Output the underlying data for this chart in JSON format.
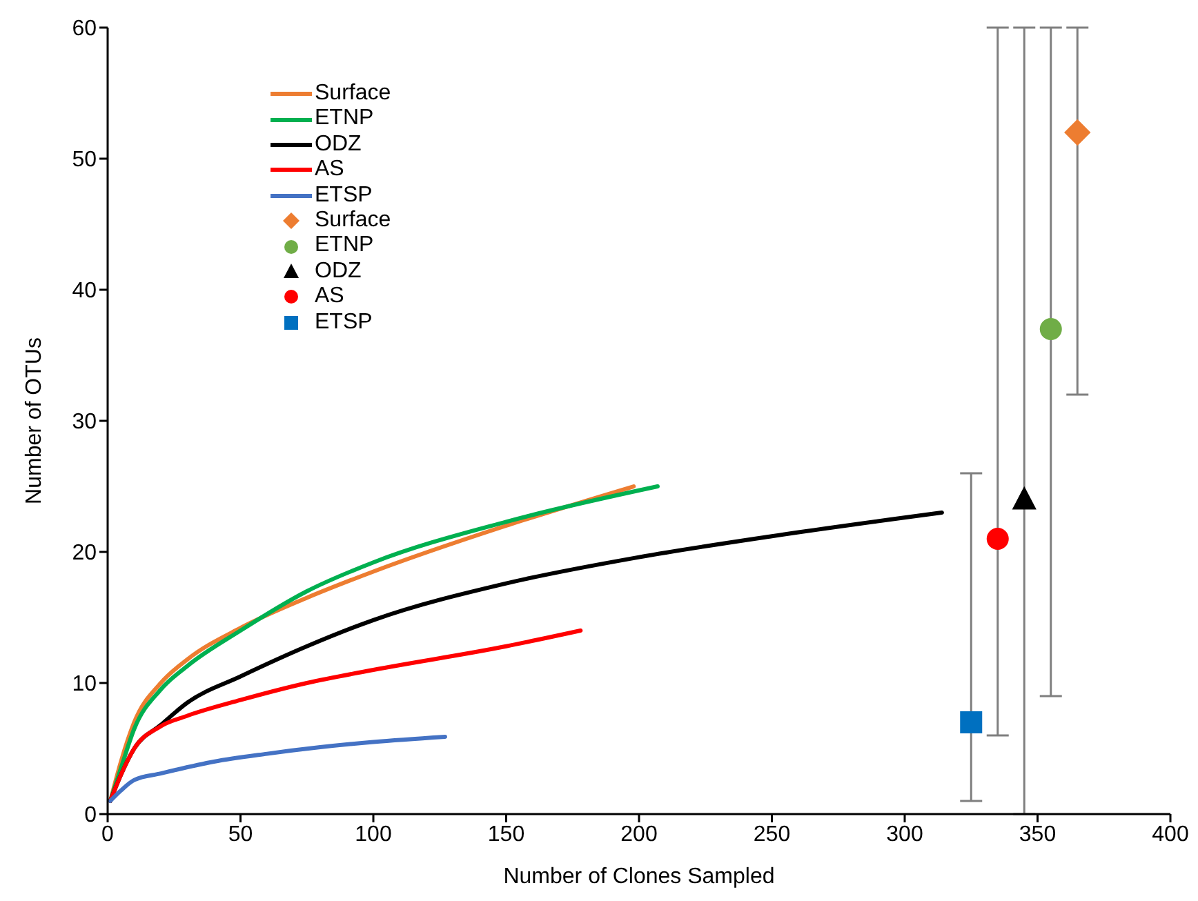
{
  "chart_data": {
    "type": "line",
    "xlabel": "Number of Clones Sampled",
    "ylabel": "Number of OTUs",
    "xlim": [
      0,
      400
    ],
    "xticks": [
      0,
      50,
      100,
      150,
      200,
      250,
      300,
      350,
      400
    ],
    "ylim": [
      0,
      60
    ],
    "yticks": [
      0,
      10,
      20,
      30,
      40,
      50,
      60
    ],
    "grid": false,
    "legend": "top left",
    "series": [
      {
        "name": "Surface",
        "color": "#ed7d31",
        "x": [
          1,
          5,
          10,
          20,
          30,
          50,
          75,
          100,
          150,
          198
        ],
        "values": [
          1,
          4,
          7,
          10,
          11.8,
          14.2,
          16.5,
          18.5,
          22,
          25
        ]
      },
      {
        "name": "ETNP",
        "color": "#00b050",
        "x": [
          1,
          5,
          10,
          20,
          30,
          50,
          75,
          100,
          150,
          207
        ],
        "values": [
          1,
          3.5,
          6.5,
          9.5,
          11.3,
          14,
          17,
          19.2,
          22.3,
          25
        ]
      },
      {
        "name": "ODZ",
        "color": "#000000",
        "x": [
          1,
          5,
          10,
          20,
          30,
          50,
          75,
          100,
          150,
          200,
          250,
          314
        ],
        "values": [
          1,
          3,
          5,
          6.8,
          8.5,
          10.5,
          12.8,
          14.8,
          17.6,
          19.6,
          21.2,
          23
        ]
      },
      {
        "name": "AS",
        "color": "#ff0000",
        "x": [
          1,
          5,
          10,
          20,
          30,
          50,
          75,
          100,
          150,
          178
        ],
        "values": [
          1,
          3,
          5,
          6.7,
          7.5,
          8.7,
          10,
          11,
          12.8,
          14
        ]
      },
      {
        "name": "ETSP",
        "color": "#4472c4",
        "x": [
          1,
          5,
          10,
          20,
          40,
          60,
          80,
          100,
          127
        ],
        "values": [
          1,
          1.8,
          2.6,
          3.1,
          4,
          4.6,
          5.1,
          5.5,
          5.9
        ]
      },
      {
        "name": "Surface",
        "type": "scatter",
        "marker": "diamond",
        "color": "#ed7d31",
        "x": [
          365
        ],
        "values": [
          52
        ],
        "errors": [
          [
            32,
            60
          ]
        ]
      },
      {
        "name": "ETNP",
        "type": "scatter",
        "marker": "circle",
        "color": "#70ad47",
        "x": [
          355
        ],
        "values": [
          37
        ],
        "errors": [
          [
            9,
            60
          ]
        ]
      },
      {
        "name": "ODZ",
        "type": "scatter",
        "marker": "triangle",
        "color": "#000000",
        "x": [
          345
        ],
        "values": [
          24
        ],
        "errors": [
          [
            0,
            60
          ]
        ]
      },
      {
        "name": "AS",
        "type": "scatter",
        "marker": "circle",
        "color": "#ff0000",
        "x": [
          335
        ],
        "values": [
          21
        ],
        "errors": [
          [
            6,
            60
          ]
        ]
      },
      {
        "name": "ETSP",
        "type": "scatter",
        "marker": "square",
        "color": "#0070c0",
        "x": [
          325
        ],
        "values": [
          7
        ],
        "errors": [
          [
            1,
            26
          ]
        ]
      }
    ]
  }
}
